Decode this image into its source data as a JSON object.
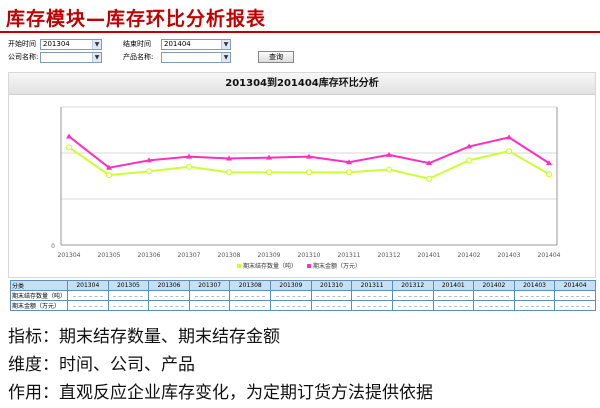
{
  "slide": {
    "title": "库存模块—库存环比分析报表"
  },
  "form": {
    "start_label": "开始时间",
    "start_value": "201304",
    "end_label": "结束时间",
    "end_value": "201404",
    "company_label": "公司名称:",
    "company_value": "",
    "product_label": "产品名称:",
    "product_value": "",
    "query_label": "查询"
  },
  "chart_header": "201304到201404库存环比分析",
  "chart_data": {
    "type": "line",
    "categories": [
      "201304",
      "201305",
      "201306",
      "201307",
      "201308",
      "201309",
      "201310",
      "201311",
      "201312",
      "201401",
      "201402",
      "201403",
      "201404"
    ],
    "series": [
      {
        "name": "期末结存数量（吨）",
        "color": "#ccff33",
        "values": [
          106,
          76,
          80,
          85,
          79,
          79,
          79,
          79,
          82,
          72,
          92,
          102,
          77
        ]
      },
      {
        "name": "期末金额（万元）",
        "color": "#ff2fbf",
        "values": [
          118,
          84,
          92,
          96,
          94,
          95,
          96,
          90,
          98,
          89,
          107,
          117,
          89
        ]
      }
    ],
    "y_left_ticks": [
      "0",
      "",
      "",
      ""
    ],
    "ylim": [
      0,
      150
    ]
  },
  "table": {
    "header_label": "分类",
    "row1_label": "期末结存数量（吨）",
    "row2_label": "期末金额（万元）"
  },
  "bullets": [
    "指标：期末结存数量、期末结存金额",
    "维度：时间、公司、产品",
    "作用：直观反应企业库存变化，为定期订货方法提供依据"
  ]
}
